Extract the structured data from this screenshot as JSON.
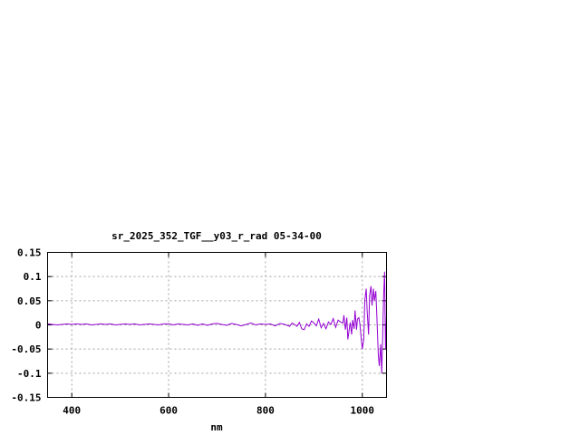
{
  "chart_data": {
    "type": "line",
    "title": "sr_2025_352_TGF__y03_r_rad 05-34-00",
    "xlabel": "nm",
    "ylabel": "",
    "xlim": [
      350,
      1050
    ],
    "ylim": [
      -0.15,
      0.15
    ],
    "xticks": [
      400,
      600,
      800,
      1000
    ],
    "xtick_labels": [
      "400",
      "600",
      "800",
      "1000"
    ],
    "yticks": [
      0.15,
      0.1,
      0.05,
      0,
      -0.05,
      -0.1,
      -0.15
    ],
    "ytick_labels": [
      "0.15",
      "0.1",
      "0.05",
      "0",
      "-0.05",
      "-0.1",
      "-0.15"
    ],
    "grid": true,
    "colors": {
      "line": "#9400d3",
      "grid": "#a0a0a0",
      "axes": "#000000"
    },
    "series": [
      {
        "x": [
          350,
          360,
          370,
          380,
          390,
          400,
          410,
          420,
          430,
          440,
          450,
          460,
          470,
          480,
          490,
          500,
          510,
          520,
          530,
          540,
          550,
          560,
          570,
          580,
          590,
          600,
          610,
          620,
          630,
          640,
          650,
          660,
          670,
          680,
          690,
          700,
          710,
          720,
          730,
          740,
          750,
          760,
          770,
          780,
          790,
          800,
          810,
          820,
          830,
          840,
          850,
          855,
          860,
          865,
          870,
          875,
          880,
          885,
          890,
          895,
          900,
          905,
          910,
          915,
          920,
          925,
          930,
          935,
          940,
          945,
          950,
          955,
          960,
          962,
          965,
          968,
          970,
          975,
          978,
          980,
          983,
          985,
          988,
          990,
          993,
          995,
          998,
          1000,
          1003,
          1005,
          1008,
          1010,
          1013,
          1015,
          1018,
          1020,
          1023,
          1025,
          1028,
          1030,
          1033,
          1035,
          1038,
          1040,
          1042,
          1044,
          1046,
          1048,
          1050
        ],
        "y": [
          0.002,
          0.001,
          0,
          0.001,
          0.002,
          0.001,
          0.002,
          0.001,
          0.002,
          0,
          0.001,
          0.002,
          0.001,
          0.002,
          0,
          0.001,
          0.002,
          0.001,
          0.002,
          0,
          0.001,
          0.002,
          0.001,
          0,
          0.002,
          0.002,
          0,
          0.002,
          0.001,
          0,
          0.002,
          -0.001,
          0.002,
          -0.001,
          0.002,
          0.003,
          0.001,
          -0.001,
          0.003,
          0.001,
          -0.002,
          0.001,
          0.004,
          0,
          0.002,
          0.001,
          0.002,
          -0.002,
          0.003,
          0.001,
          -0.003,
          0.004,
          0.001,
          -0.003,
          0.005,
          -0.008,
          -0.01,
          0.002,
          -0.003,
          0.008,
          0.004,
          -0.002,
          0.012,
          -0.006,
          0.003,
          -0.008,
          0.006,
          0.001,
          0.013,
          -0.005,
          0.01,
          0.006,
          0.004,
          0.02,
          -0.01,
          0.015,
          -0.03,
          0.005,
          -0.02,
          0.01,
          -0.008,
          0.03,
          -0.01,
          0.012,
          0.015,
          0.002,
          -0.03,
          -0.05,
          -0.03,
          0.05,
          0.075,
          0.03,
          -0.02,
          0.06,
          0.08,
          0.04,
          0.075,
          0.05,
          0.07,
          0.02,
          -0.06,
          -0.085,
          -0.04,
          -0.1,
          -0.03,
          0.06,
          0.11,
          -0.05,
          0.02
        ]
      }
    ]
  }
}
